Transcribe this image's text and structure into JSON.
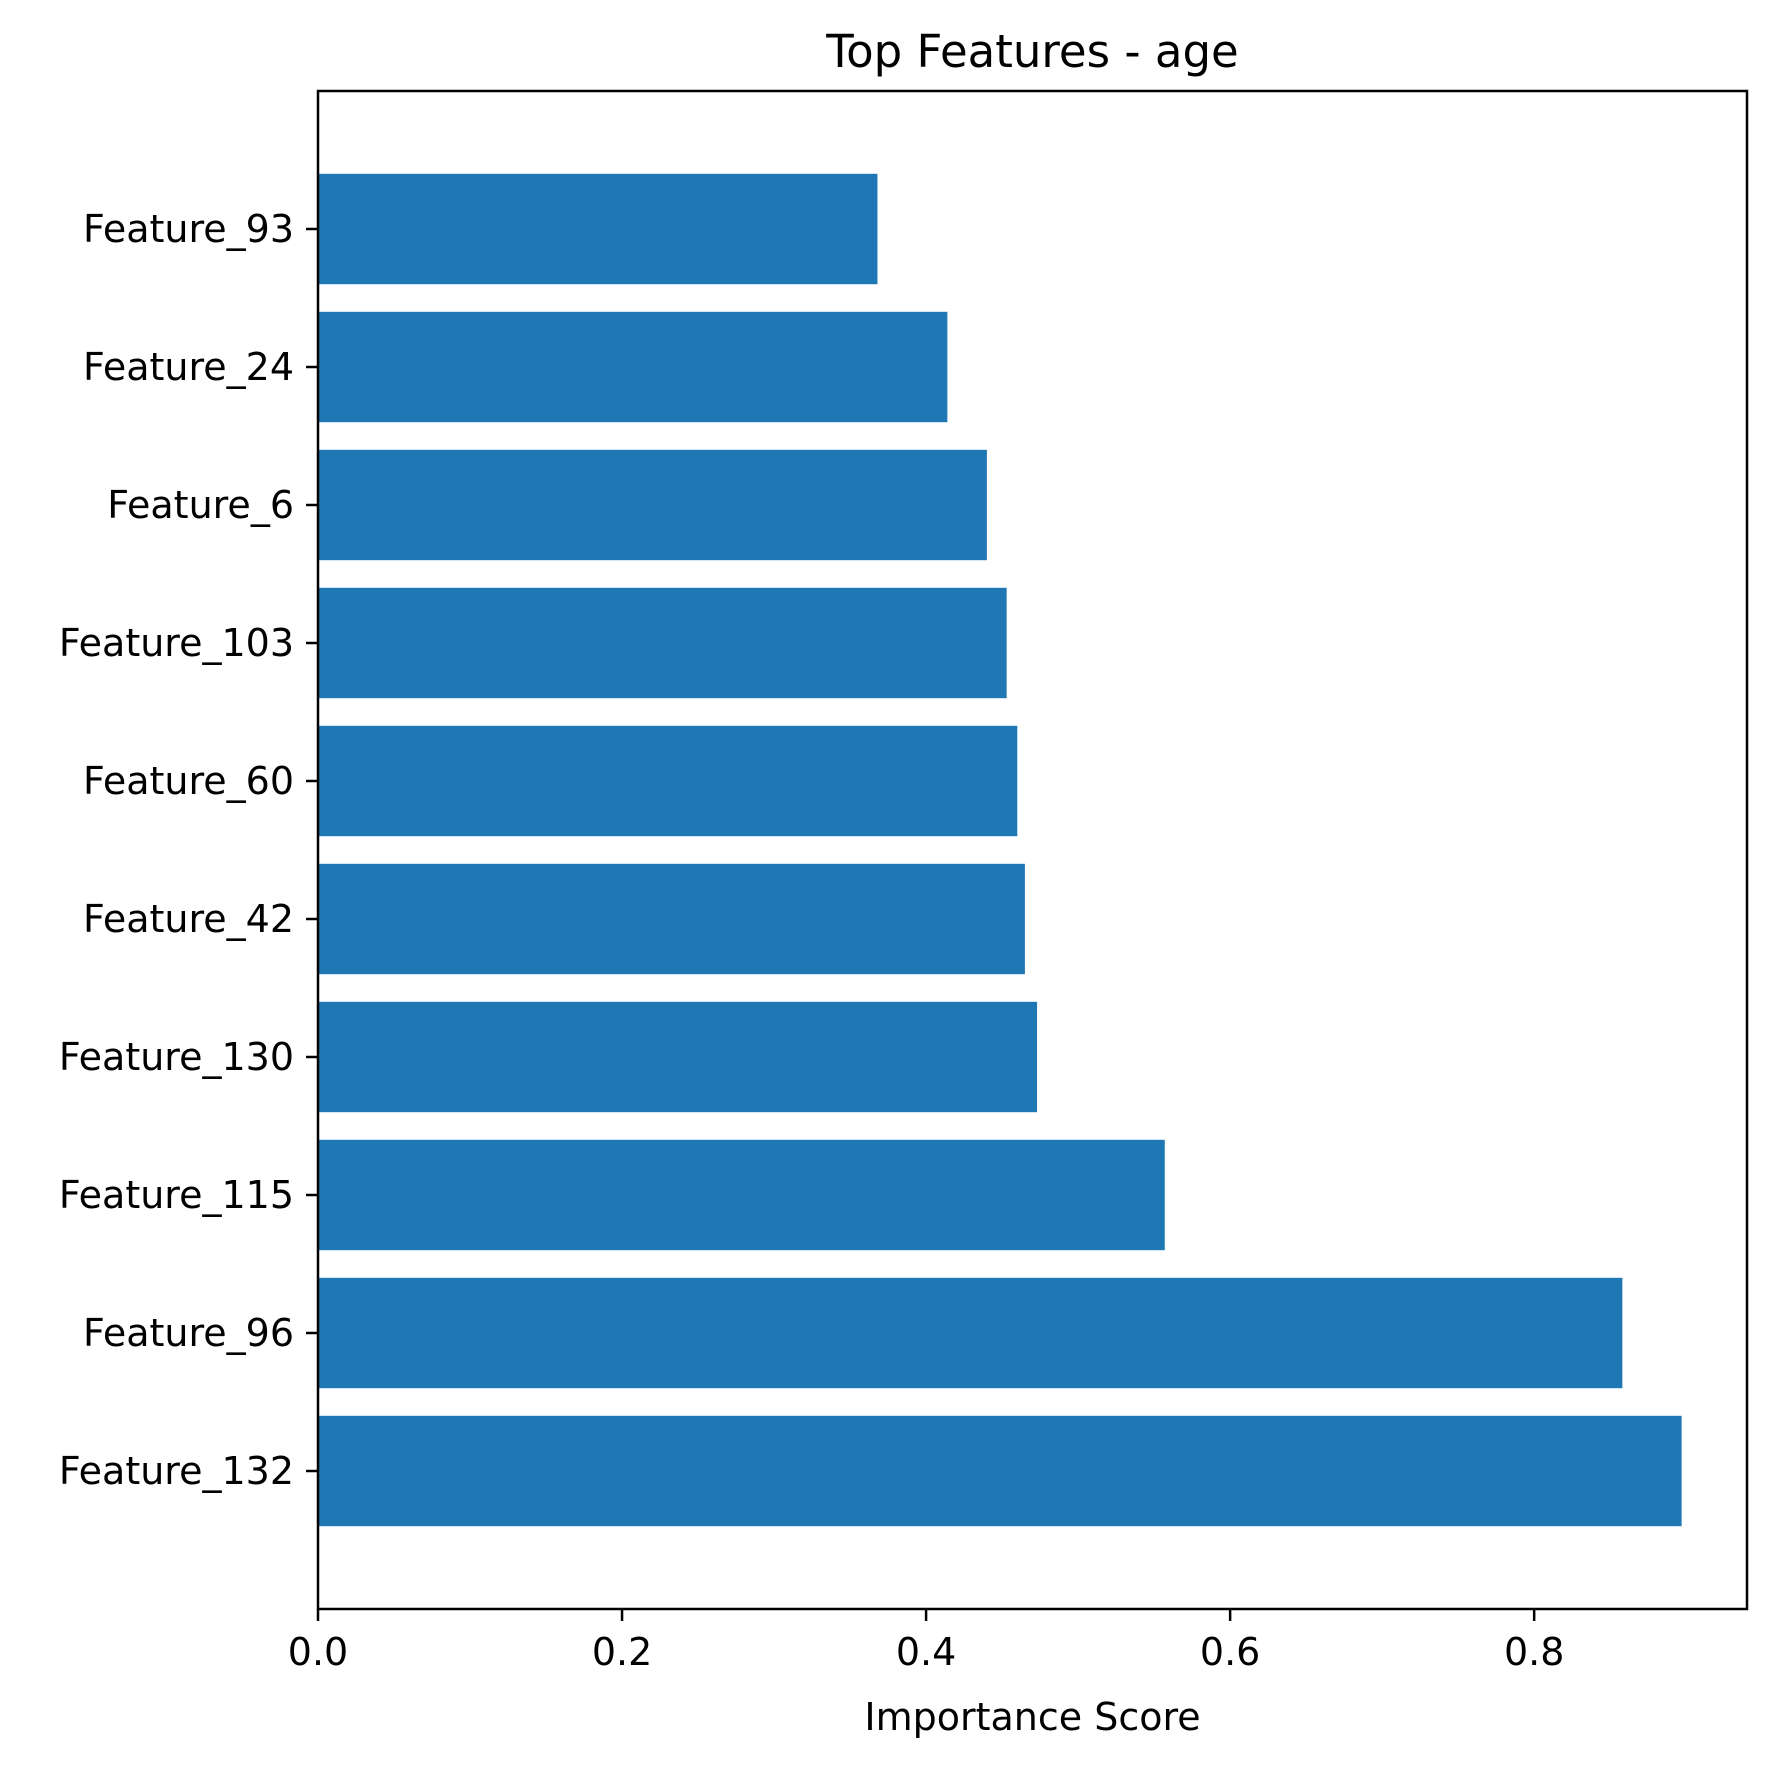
{
  "chart_data": {
    "type": "bar",
    "orientation": "horizontal",
    "title": "Top Features - age",
    "xlabel": "Importance Score",
    "ylabel": "",
    "categories": [
      "Feature_132",
      "Feature_96",
      "Feature_115",
      "Feature_130",
      "Feature_42",
      "Feature_60",
      "Feature_103",
      "Feature_6",
      "Feature_24",
      "Feature_93"
    ],
    "values": [
      0.897,
      0.858,
      0.557,
      0.473,
      0.465,
      0.46,
      0.453,
      0.44,
      0.414,
      0.368
    ],
    "xlim": [
      0,
      0.94
    ],
    "xticks": [
      0.0,
      0.2,
      0.4,
      0.6,
      0.8
    ],
    "xtick_labels": [
      "0.0",
      "0.2",
      "0.4",
      "0.6",
      "0.8"
    ],
    "bar_color": "#1f77b4",
    "grid": false,
    "legend": false
  }
}
